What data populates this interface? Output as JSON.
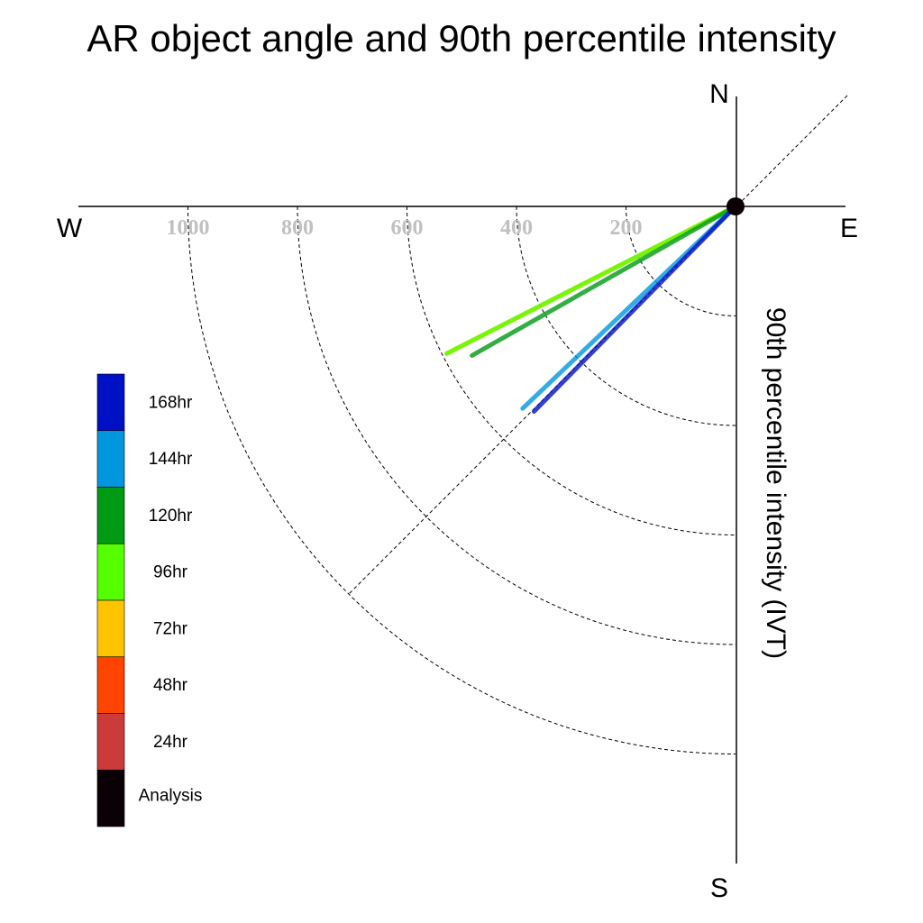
{
  "chart_data": {
    "type": "polar-vector",
    "title": "AR object angle and 90th percentile intensity",
    "ylabel": "90th percentile intensity (IVT)",
    "compass": {
      "north": "N",
      "south": "S",
      "east": "E",
      "west": "W"
    },
    "radial_ticks": [
      200,
      400,
      600,
      800,
      1000
    ],
    "radial_tick_labels": [
      "200",
      "400",
      "600",
      "800",
      "1000"
    ],
    "rmax": 1200,
    "series": [
      {
        "name": "Analysis",
        "color": "#0a0006",
        "angle_deg": 240,
        "magnitude": 0
      },
      {
        "name": "24hr",
        "color": "#cc3a3a",
        "angle_deg": 240,
        "magnitude": 0
      },
      {
        "name": "48hr",
        "color": "#ff4400",
        "angle_deg": 240,
        "magnitude": 0
      },
      {
        "name": "72hr",
        "color": "#ffc400",
        "angle_deg": 243,
        "magnitude": 592
      },
      {
        "name": "96hr",
        "color": "#55ff00",
        "angle_deg": 243,
        "magnitude": 592
      },
      {
        "name": "120hr",
        "color": "#009a14",
        "angle_deg": 240.5,
        "magnitude": 553
      },
      {
        "name": "144hr",
        "color": "#0097de",
        "angle_deg": 226.5,
        "magnitude": 536
      },
      {
        "name": "168hr",
        "color": "#0010c4",
        "angle_deg": 224.5,
        "magnitude": 525
      }
    ],
    "legend": [
      {
        "label": "168hr",
        "color": "#0010c4"
      },
      {
        "label": "144hr",
        "color": "#0097de"
      },
      {
        "label": "120hr",
        "color": "#009a14"
      },
      {
        "label": "96hr",
        "color": "#55ff00"
      },
      {
        "label": "72hr",
        "color": "#ffc400"
      },
      {
        "label": "48hr",
        "color": "#ff4400"
      },
      {
        "label": "24hr",
        "color": "#cc3a3a"
      },
      {
        "label": "Analysis",
        "color": "#0a0006"
      }
    ],
    "legend_position": "left",
    "grid": true
  }
}
